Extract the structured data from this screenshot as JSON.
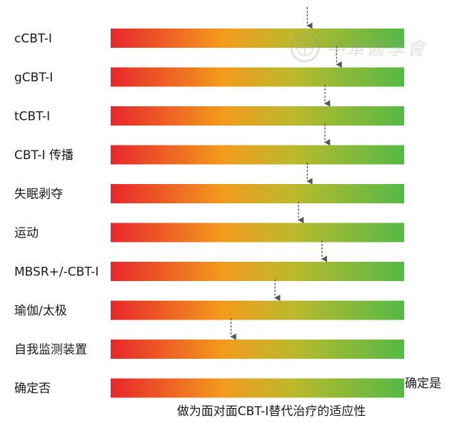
{
  "chart_data": {
    "type": "bar",
    "categories": [
      "cCBT-I",
      "gCBT-I",
      "tCBT-I",
      "CBT-I 传播",
      "失眠剥夺",
      "运动",
      "MBSR+/-CBT-I",
      "瑜伽/太极",
      "自我监测装置",
      "确定否"
    ],
    "values": [
      0.67,
      0.77,
      0.73,
      0.73,
      0.67,
      0.64,
      0.72,
      0.56,
      0.41,
      null
    ],
    "xlim": [
      0,
      1
    ],
    "scale_low_label": "确定否",
    "scale_high_label": "确定是",
    "xlabel": "做为面对面CBT-I替代治疗的适应性",
    "gradient_colors": [
      "#e8262c",
      "#f39a1c",
      "#bcb92c",
      "#55b947"
    ],
    "marker_color": "#555555"
  },
  "watermark": {
    "text": "中華醫學會",
    "color": "#9a9a9a"
  }
}
